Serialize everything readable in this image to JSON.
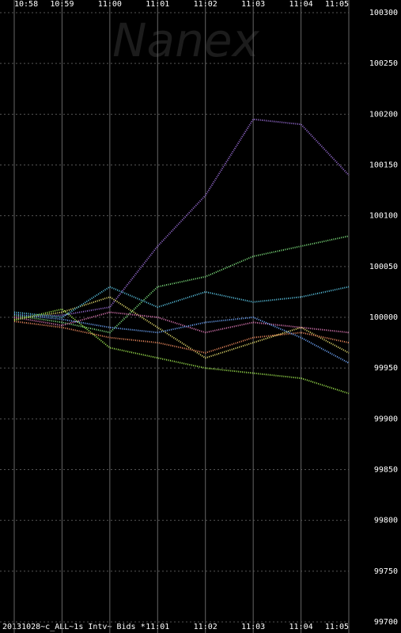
{
  "chart_data": {
    "type": "line",
    "watermark": "Nanex",
    "footer": "20131028~c_ALL~1s Intv~ Bids *",
    "categories": [
      "10:58",
      "10:59",
      "11:00",
      "11:01",
      "11:02",
      "11:03",
      "11:04",
      "11:05"
    ],
    "series": [
      {
        "color": "#9b6fd8",
        "values": [
          100000,
          100002,
          100010,
          100070,
          100120,
          100195,
          100190,
          100140
        ]
      },
      {
        "color": "#7ee07e",
        "values": [
          100002,
          99995,
          99985,
          100030,
          100040,
          100060,
          100070,
          100080
        ]
      },
      {
        "color": "#e8e070",
        "values": [
          99998,
          100005,
          100020,
          99990,
          99960,
          99975,
          99990,
          99965
        ]
      },
      {
        "color": "#5cc8e8",
        "values": [
          100005,
          100000,
          100030,
          100010,
          100025,
          100015,
          100020,
          100030
        ]
      },
      {
        "color": "#f08c60",
        "values": [
          99996,
          99990,
          99980,
          99975,
          99965,
          99980,
          99985,
          99975
        ]
      },
      {
        "color": "#e07ab8",
        "values": [
          100000,
          99992,
          100005,
          100000,
          99985,
          99995,
          99990,
          99985
        ]
      },
      {
        "color": "#6fa8ff",
        "values": [
          100003,
          99998,
          99990,
          99985,
          99995,
          100000,
          99980,
          99955
        ]
      },
      {
        "color": "#a0e850",
        "values": [
          99997,
          100008,
          99970,
          99960,
          99950,
          99945,
          99940,
          99925
        ]
      }
    ],
    "ylim": [
      99700,
      100300
    ],
    "yticks": [
      99700,
      99750,
      99800,
      99850,
      99900,
      99950,
      100000,
      100050,
      100100,
      100150,
      100200,
      100250,
      100300
    ],
    "grid": true
  }
}
